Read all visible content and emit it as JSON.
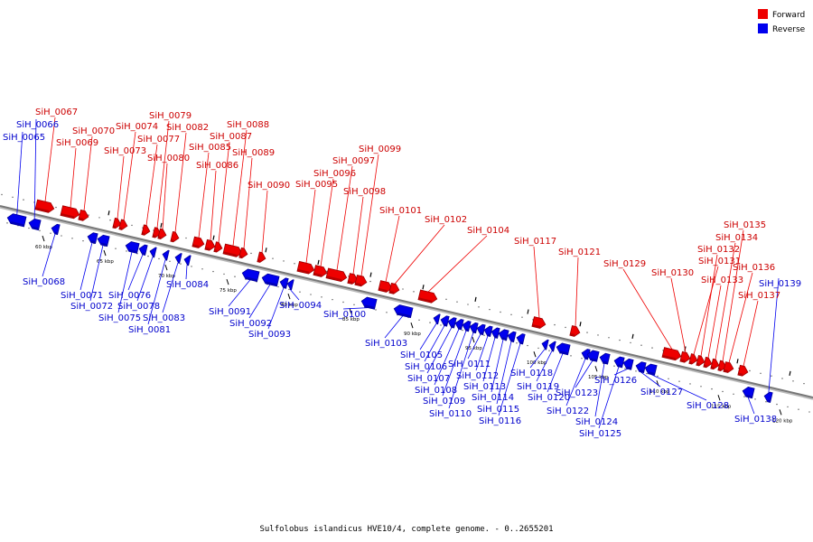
{
  "caption": "Sulfolobus islandicus HVE10/4, complete genome. - 0..2655201",
  "legend": [
    {
      "key": "forward",
      "label": "Forward",
      "color": "#ee0000"
    },
    {
      "key": "reverse",
      "label": "Reverse",
      "color": "#0000ee"
    }
  ],
  "colors": {
    "forward": "#ee0000",
    "forward_shade": "#990000",
    "reverse": "#0000ee",
    "reverse_shade": "#000099",
    "forward_label": "#cc0000",
    "reverse_label": "#0000cc",
    "axis": "#888888"
  },
  "ticks": [
    {
      "kbp": 60,
      "label": "60 kbp"
    },
    {
      "kbp": 65,
      "label": "65 kbp"
    },
    {
      "kbp": 70,
      "label": "70 kbp"
    },
    {
      "kbp": 75,
      "label": "75 kbp"
    },
    {
      "kbp": 80,
      "label": "80 kbp"
    },
    {
      "kbp": 85,
      "label": "85 kbp"
    },
    {
      "kbp": 90,
      "label": "90 kbp"
    },
    {
      "kbp": 95,
      "label": "95 kbp"
    },
    {
      "kbp": 100,
      "label": "100 kbp"
    },
    {
      "kbp": 105,
      "label": "105 kbp"
    },
    {
      "kbp": 110,
      "label": "110 kbp"
    },
    {
      "kbp": 115,
      "label": "115 kbp"
    },
    {
      "kbp": 120,
      "label": "120 kbp"
    }
  ],
  "genes": [
    {
      "id": "SiH_0065",
      "strand": "reverse"
    },
    {
      "id": "SiH_0066",
      "strand": "reverse"
    },
    {
      "id": "SiH_0067",
      "strand": "forward"
    },
    {
      "id": "SiH_0068",
      "strand": "reverse"
    },
    {
      "id": "SiH_0069",
      "strand": "forward"
    },
    {
      "id": "SiH_0070",
      "strand": "forward"
    },
    {
      "id": "SiH_0071",
      "strand": "reverse"
    },
    {
      "id": "SiH_0072",
      "strand": "reverse"
    },
    {
      "id": "SiH_0073",
      "strand": "forward"
    },
    {
      "id": "SiH_0074",
      "strand": "forward"
    },
    {
      "id": "SiH_0075",
      "strand": "reverse"
    },
    {
      "id": "SiH_0076",
      "strand": "reverse"
    },
    {
      "id": "SiH_0077",
      "strand": "forward"
    },
    {
      "id": "SiH_0078",
      "strand": "reverse"
    },
    {
      "id": "SiH_0079",
      "strand": "forward"
    },
    {
      "id": "SiH_0080",
      "strand": "forward"
    },
    {
      "id": "SiH_0081",
      "strand": "reverse"
    },
    {
      "id": "SiH_0082",
      "strand": "forward"
    },
    {
      "id": "SiH_0083",
      "strand": "reverse"
    },
    {
      "id": "SiH_0084",
      "strand": "reverse"
    },
    {
      "id": "SiH_0085",
      "strand": "forward"
    },
    {
      "id": "SiH_0086",
      "strand": "forward"
    },
    {
      "id": "SiH_0087",
      "strand": "forward"
    },
    {
      "id": "SiH_0088",
      "strand": "forward"
    },
    {
      "id": "SiH_0089",
      "strand": "forward"
    },
    {
      "id": "SiH_0090",
      "strand": "forward"
    },
    {
      "id": "SiH_0091",
      "strand": "reverse"
    },
    {
      "id": "SiH_0092",
      "strand": "reverse"
    },
    {
      "id": "SiH_0093",
      "strand": "reverse"
    },
    {
      "id": "SiH_0094",
      "strand": "reverse"
    },
    {
      "id": "SiH_0095",
      "strand": "forward"
    },
    {
      "id": "SiH_0096",
      "strand": "forward"
    },
    {
      "id": "SiH_0097",
      "strand": "forward"
    },
    {
      "id": "SiH_0098",
      "strand": "forward"
    },
    {
      "id": "SiH_0099",
      "strand": "forward"
    },
    {
      "id": "SiH_0100",
      "strand": "reverse"
    },
    {
      "id": "SiH_0101",
      "strand": "forward"
    },
    {
      "id": "SiH_0102",
      "strand": "forward"
    },
    {
      "id": "SiH_0103",
      "strand": "reverse"
    },
    {
      "id": "SiH_0104",
      "strand": "forward"
    },
    {
      "id": "SiH_0105",
      "strand": "reverse"
    },
    {
      "id": "SiH_0106",
      "strand": "reverse"
    },
    {
      "id": "SiH_0107",
      "strand": "reverse"
    },
    {
      "id": "SiH_0108",
      "strand": "reverse"
    },
    {
      "id": "SiH_0109",
      "strand": "reverse"
    },
    {
      "id": "SiH_0110",
      "strand": "reverse"
    },
    {
      "id": "SiH_0111",
      "strand": "reverse"
    },
    {
      "id": "SiH_0112",
      "strand": "reverse"
    },
    {
      "id": "SiH_0113",
      "strand": "reverse"
    },
    {
      "id": "SiH_0114",
      "strand": "reverse"
    },
    {
      "id": "SiH_0115",
      "strand": "reverse"
    },
    {
      "id": "SiH_0116",
      "strand": "reverse"
    },
    {
      "id": "SiH_0117",
      "strand": "forward"
    },
    {
      "id": "SiH_0118",
      "strand": "reverse"
    },
    {
      "id": "SiH_0119",
      "strand": "reverse"
    },
    {
      "id": "SiH_0120",
      "strand": "reverse"
    },
    {
      "id": "SiH_0121",
      "strand": "forward"
    },
    {
      "id": "SiH_0122",
      "strand": "reverse"
    },
    {
      "id": "SiH_0123",
      "strand": "reverse"
    },
    {
      "id": "SiH_0124",
      "strand": "reverse"
    },
    {
      "id": "SiH_0125",
      "strand": "reverse"
    },
    {
      "id": "SiH_0126",
      "strand": "reverse"
    },
    {
      "id": "SiH_0127",
      "strand": "reverse"
    },
    {
      "id": "SiH_0128",
      "strand": "reverse"
    },
    {
      "id": "SiH_0129",
      "strand": "forward"
    },
    {
      "id": "SiH_0130",
      "strand": "forward"
    },
    {
      "id": "SiH_0131",
      "strand": "forward"
    },
    {
      "id": "SiH_0132",
      "strand": "forward"
    },
    {
      "id": "SiH_0133",
      "strand": "forward"
    },
    {
      "id": "SiH_0134",
      "strand": "forward"
    },
    {
      "id": "SiH_0135",
      "strand": "forward"
    },
    {
      "id": "SiH_0136",
      "strand": "forward"
    },
    {
      "id": "SiH_0137",
      "strand": "forward"
    },
    {
      "id": "SiH_0138",
      "strand": "reverse"
    },
    {
      "id": "SiH_0139",
      "strand": "reverse"
    }
  ]
}
